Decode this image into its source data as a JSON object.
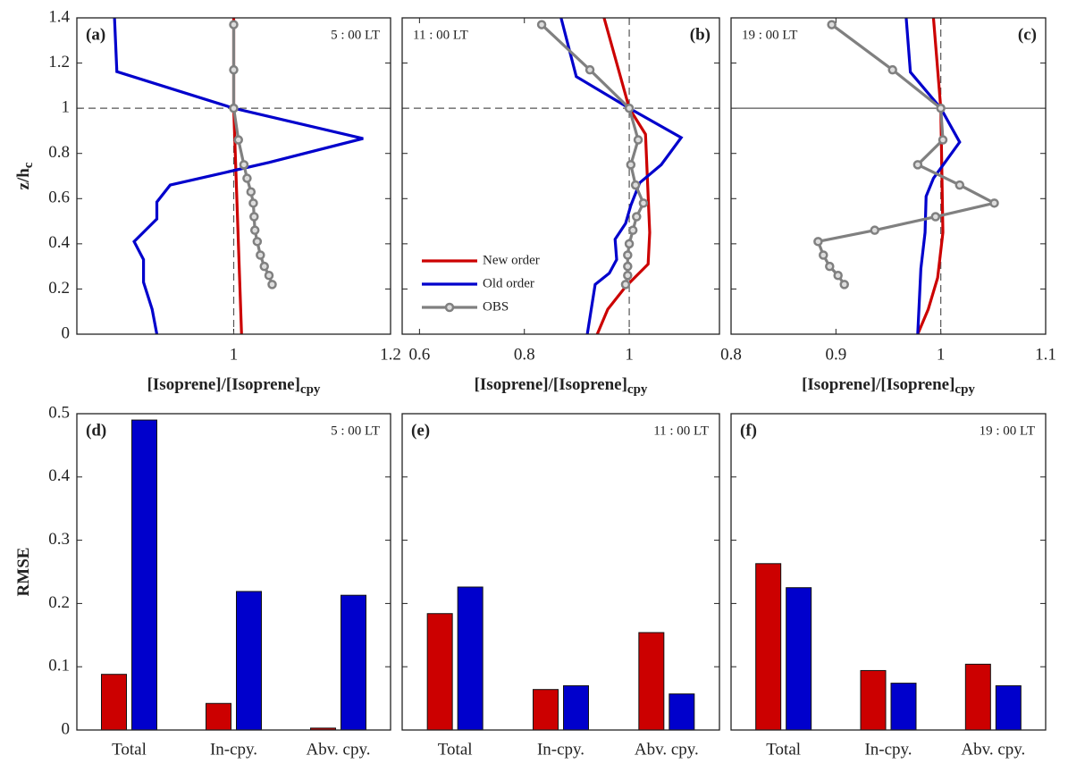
{
  "chart_data": [
    {
      "type": "line",
      "panel_label": "(a)",
      "time_label": "5 : 00 LT",
      "xlabel": "[Isoprene]/[Isoprene]",
      "xlabel_sub": "cpy",
      "ylabel": "z/h",
      "ylabel_sub": "c",
      "xlim": [
        0.8,
        1.2
      ],
      "xticks": [
        1,
        1.2
      ],
      "ylim": [
        0,
        1.4
      ],
      "yticks": [
        0,
        0.2,
        0.4,
        0.6,
        0.8,
        1,
        1.2,
        1.4
      ],
      "hline": 1,
      "hline_style": "dashed",
      "vline": 1,
      "series": [
        {
          "name": "New order",
          "color": "#cc0000",
          "x": [
            1.0,
            1.0,
            1.01
          ],
          "y": [
            1.4,
            1.0,
            0
          ]
        },
        {
          "name": "Old order",
          "color": "#0000cc",
          "x": [
            0.848,
            0.851,
            1.0,
            1.165,
            1.045,
            0.919,
            0.902,
            0.902,
            0.873,
            0.885,
            0.885,
            0.896,
            0.902
          ],
          "y": [
            1.4,
            1.162,
            1.0,
            0.866,
            0.76,
            0.66,
            0.585,
            0.51,
            0.41,
            0.33,
            0.23,
            0.11,
            0
          ]
        },
        {
          "name": "OBS",
          "color": "#808080",
          "markers": true,
          "x": [
            1.0,
            1.0,
            1.0,
            1.006,
            1.013,
            1.017,
            1.022,
            1.025,
            1.026,
            1.027,
            1.03,
            1.034,
            1.039,
            1.045,
            1.049
          ],
          "y": [
            1.37,
            1.17,
            1.0,
            0.86,
            0.75,
            0.69,
            0.63,
            0.58,
            0.52,
            0.46,
            0.41,
            0.35,
            0.3,
            0.26,
            0.22
          ]
        }
      ]
    },
    {
      "type": "line",
      "panel_label": "(b)",
      "time_label": "11 : 00 LT",
      "xlabel": "[Isoprene]/[Isoprene]",
      "xlabel_sub": "cpy",
      "xlim": [
        0.567,
        1.172
      ],
      "xticks": [
        0.6,
        0.8,
        1
      ],
      "ylim": [
        0,
        1.4
      ],
      "yticks": [
        0,
        0.2,
        0.4,
        0.6,
        0.8,
        1,
        1.2,
        1.4
      ],
      "hline": 1,
      "hline_style": "dashed",
      "vline": 1,
      "legend": "lower left",
      "series": [
        {
          "name": "New order",
          "color": "#cc0000",
          "x": [
            0.952,
            1.0,
            1.031,
            1.039,
            1.036,
            0.993,
            0.959,
            0.939
          ],
          "y": [
            1.4,
            1.0,
            0.885,
            0.45,
            0.31,
            0.21,
            0.11,
            0
          ]
        },
        {
          "name": "Old order",
          "color": "#0000cc",
          "x": [
            0.87,
            0.899,
            1.0,
            1.099,
            1.061,
            1.02,
            1.003,
            0.993,
            0.973,
            0.976,
            0.962,
            0.935,
            0.92
          ],
          "y": [
            1.4,
            1.14,
            1.0,
            0.87,
            0.75,
            0.67,
            0.57,
            0.49,
            0.42,
            0.33,
            0.27,
            0.22,
            0
          ]
        },
        {
          "name": "OBS",
          "color": "#808080",
          "markers": true,
          "x": [
            0.833,
            0.925,
            1.0,
            1.017,
            1.003,
            1.012,
            1.027,
            1.014,
            1.007,
            1.0,
            0.997,
            0.997,
            0.997,
            0.993
          ],
          "y": [
            1.37,
            1.17,
            1.0,
            0.86,
            0.75,
            0.66,
            0.58,
            0.52,
            0.46,
            0.4,
            0.35,
            0.3,
            0.26,
            0.22
          ]
        }
      ]
    },
    {
      "type": "line",
      "panel_label": "(c)",
      "time_label": "19 : 00 LT",
      "xlabel": "[Isoprene]/[Isoprene]",
      "xlabel_sub": "cpy",
      "xlim": [
        0.8,
        1.1
      ],
      "xticks": [
        0.8,
        0.9,
        1,
        1.1
      ],
      "ylim": [
        0,
        1.4
      ],
      "yticks": [
        0,
        0.2,
        0.4,
        0.6,
        0.8,
        1,
        1.2,
        1.4
      ],
      "hline": 1,
      "hline_style": "solid",
      "vline": 1,
      "series": [
        {
          "name": "New order",
          "color": "#cc0000",
          "x": [
            0.993,
            1.0,
            1.002,
            0.997,
            0.988,
            0.978
          ],
          "y": [
            1.4,
            1.0,
            0.45,
            0.25,
            0.11,
            0
          ]
        },
        {
          "name": "Old order",
          "color": "#0000cc",
          "x": [
            0.967,
            0.971,
            1.0,
            1.018,
            0.993,
            0.986,
            0.985,
            0.981,
            0.978
          ],
          "y": [
            1.4,
            1.16,
            1.0,
            0.85,
            0.69,
            0.61,
            0.45,
            0.29,
            0
          ]
        },
        {
          "name": "OBS",
          "color": "#808080",
          "markers": true,
          "x": [
            0.896,
            0.954,
            1.0,
            1.002,
            0.978,
            1.018,
            1.051,
            0.995,
            0.937,
            0.883,
            0.888,
            0.894,
            0.902,
            0.908
          ],
          "y": [
            1.37,
            1.17,
            1.0,
            0.86,
            0.75,
            0.66,
            0.58,
            0.52,
            0.46,
            0.41,
            0.35,
            0.3,
            0.26,
            0.22
          ]
        }
      ]
    },
    {
      "type": "bar",
      "panel_label": "(d)",
      "time_label": "5 : 00 LT",
      "ylabel": "RMSE",
      "categories": [
        "Total",
        "In-cpy.",
        "Abv. cpy."
      ],
      "ylim": [
        0,
        0.5
      ],
      "yticks": [
        0,
        0.1,
        0.2,
        0.3,
        0.4,
        0.5
      ],
      "series": [
        {
          "name": "New order",
          "color": "#cc0000",
          "values": [
            0.088,
            0.042,
            0.003
          ]
        },
        {
          "name": "Old order",
          "color": "#0000cc",
          "values": [
            0.49,
            0.219,
            0.213
          ]
        }
      ]
    },
    {
      "type": "bar",
      "panel_label": "(e)",
      "time_label": "11 : 00 LT",
      "categories": [
        "Total",
        "In-cpy.",
        "Abv. cpy."
      ],
      "ylim": [
        0,
        0.5
      ],
      "yticks": [
        0,
        0.1,
        0.2,
        0.3,
        0.4,
        0.5
      ],
      "series": [
        {
          "name": "New order",
          "color": "#cc0000",
          "values": [
            0.184,
            0.064,
            0.154
          ]
        },
        {
          "name": "Old order",
          "color": "#0000cc",
          "values": [
            0.226,
            0.07,
            0.057
          ]
        }
      ]
    },
    {
      "type": "bar",
      "panel_label": "(f)",
      "time_label": "19 : 00 LT",
      "categories": [
        "Total",
        "In-cpy.",
        "Abv. cpy."
      ],
      "ylim": [
        0,
        0.5
      ],
      "yticks": [
        0,
        0.1,
        0.2,
        0.3,
        0.4,
        0.5
      ],
      "series": [
        {
          "name": "New order",
          "color": "#cc0000",
          "values": [
            0.263,
            0.094,
            0.104
          ]
        },
        {
          "name": "Old order",
          "color": "#0000cc",
          "values": [
            0.225,
            0.074,
            0.07
          ]
        }
      ]
    }
  ]
}
